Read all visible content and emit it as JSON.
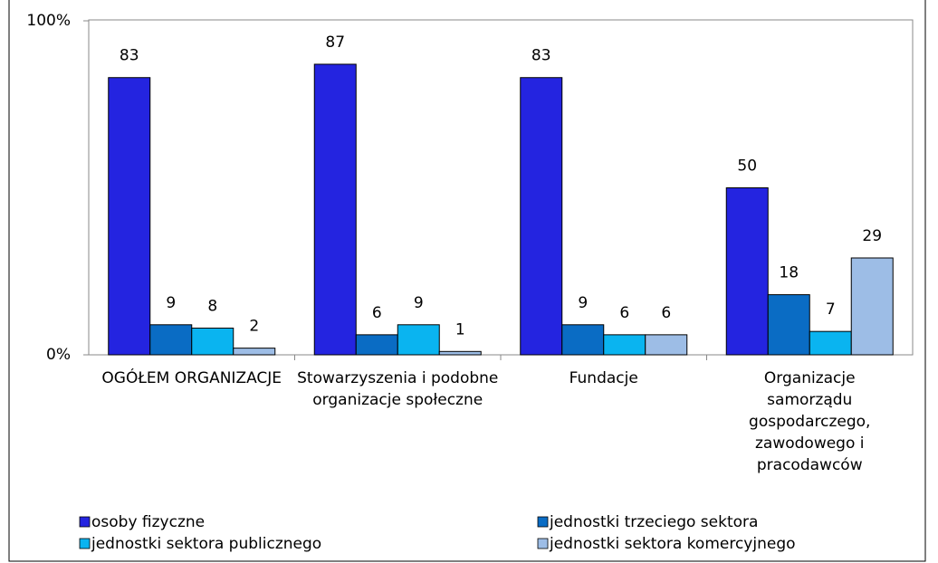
{
  "chart_data": {
    "type": "bar",
    "categories": [
      "OGÓŁEM ORGANIZACJE",
      "Stowarzyszenia i podobne organizacje społeczne",
      "Fundacje",
      "Organizacje samorządu gospodarczego, zawodowego i pracodawców"
    ],
    "series": [
      {
        "name": "osoby fizyczne",
        "color": "#2424e0",
        "values": [
          83,
          87,
          83,
          50
        ]
      },
      {
        "name": "jednostki trzeciego sektora",
        "color": "#0a6cc4",
        "values": [
          9,
          6,
          9,
          18
        ]
      },
      {
        "name": "jednostki sektora publicznego",
        "color": "#0ab4f0",
        "values": [
          8,
          9,
          6,
          7
        ]
      },
      {
        "name": "jednostki sektora komercyjnego",
        "color": "#9dbde6",
        "values": [
          2,
          1,
          6,
          29
        ]
      }
    ],
    "ylim": [
      0,
      100
    ],
    "yticks": [
      {
        "value": 0,
        "label": "0%"
      },
      {
        "value": 100,
        "label": "100%"
      }
    ],
    "grid": false
  }
}
